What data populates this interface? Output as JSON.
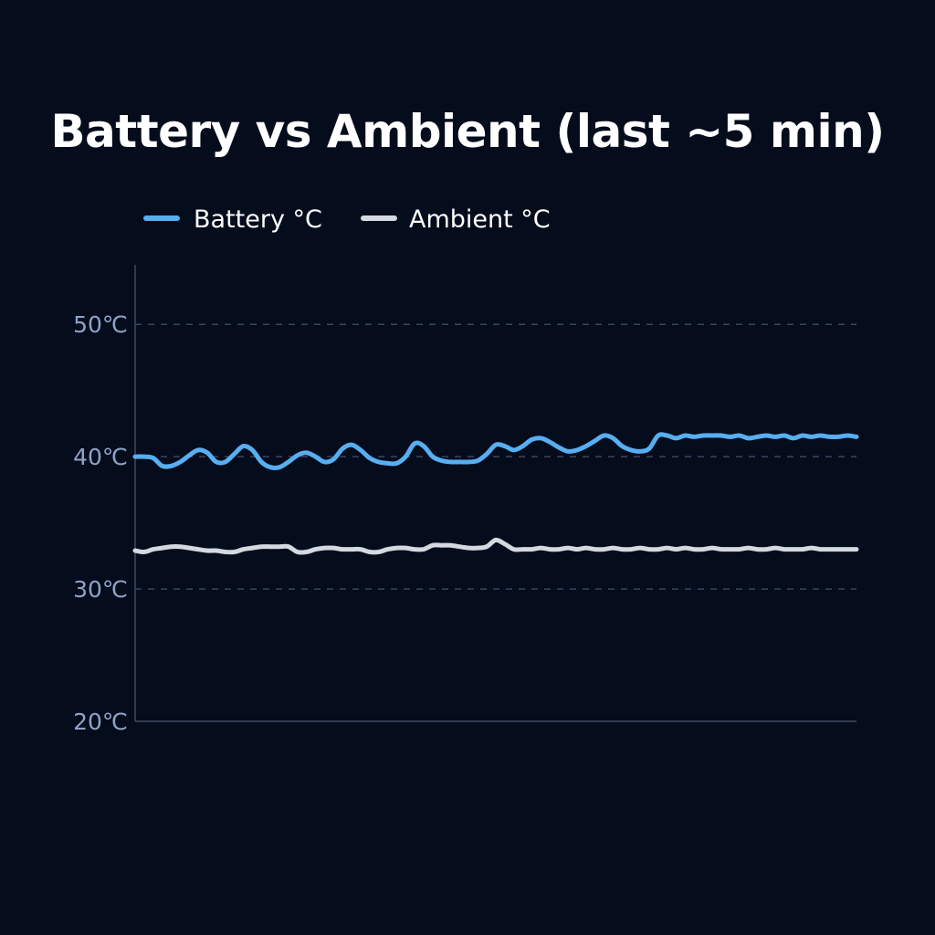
{
  "chart_data": {
    "type": "line",
    "title": "Battery vs Ambient (last ~5 min)",
    "xlabel": "",
    "ylabel": "",
    "ylim": [
      20,
      54.5
    ],
    "y_ticks": [
      {
        "value": 20,
        "label": "20℃"
      },
      {
        "value": 30,
        "label": "30℃"
      },
      {
        "value": 40,
        "label": "40℃"
      },
      {
        "value": 50,
        "label": "50℃"
      }
    ],
    "grid": true,
    "legend_position": "top-left",
    "x": [
      0,
      1,
      2,
      3,
      4,
      5,
      6,
      7,
      8,
      9,
      10,
      11,
      12,
      13,
      14,
      15,
      16,
      17,
      18,
      19,
      20,
      21,
      22,
      23,
      24,
      25,
      26,
      27,
      28,
      29,
      30,
      31,
      32,
      33,
      34,
      35,
      36,
      37,
      38,
      39,
      40,
      41,
      42,
      43,
      44,
      45,
      46,
      47,
      48,
      49,
      50,
      51,
      52,
      53,
      54,
      55,
      56,
      57,
      58,
      59,
      60,
      61,
      62,
      63,
      64,
      65,
      66,
      67,
      68,
      69,
      70,
      71,
      72,
      73,
      74,
      75,
      76,
      77,
      78,
      79,
      80
    ],
    "series": [
      {
        "name": "Battery °C",
        "color": "#57aef0",
        "values": [
          40.0,
          40.0,
          39.9,
          39.3,
          39.3,
          39.6,
          40.1,
          40.5,
          40.3,
          39.6,
          39.6,
          40.2,
          40.8,
          40.5,
          39.6,
          39.2,
          39.2,
          39.6,
          40.1,
          40.3,
          40.0,
          39.6,
          39.8,
          40.6,
          40.9,
          40.5,
          39.9,
          39.6,
          39.5,
          39.5,
          40.0,
          41.0,
          40.8,
          40.0,
          39.7,
          39.6,
          39.6,
          39.6,
          39.7,
          40.2,
          40.9,
          40.8,
          40.5,
          40.8,
          41.3,
          41.4,
          41.1,
          40.7,
          40.4,
          40.5,
          40.8,
          41.2,
          41.6,
          41.4,
          40.8,
          40.5,
          40.4,
          40.6,
          41.6,
          41.6,
          41.4,
          41.6,
          41.5,
          41.6,
          41.6,
          41.6,
          41.5,
          41.6,
          41.4,
          41.5,
          41.6,
          41.5,
          41.6,
          41.4,
          41.6,
          41.5,
          41.6,
          41.5,
          41.5,
          41.6,
          41.5
        ]
      },
      {
        "name": "Ambient °C",
        "color": "#d4d8df",
        "values": [
          32.9,
          32.8,
          33.0,
          33.1,
          33.2,
          33.2,
          33.1,
          33.0,
          32.9,
          32.9,
          32.8,
          32.8,
          33.0,
          33.1,
          33.2,
          33.2,
          33.2,
          33.2,
          32.8,
          32.8,
          33.0,
          33.1,
          33.1,
          33.0,
          33.0,
          33.0,
          32.8,
          32.8,
          33.0,
          33.1,
          33.1,
          33.0,
          33.0,
          33.3,
          33.3,
          33.3,
          33.2,
          33.1,
          33.1,
          33.2,
          33.7,
          33.4,
          33.0,
          33.0,
          33.0,
          33.1,
          33.0,
          33.0,
          33.1,
          33.0,
          33.1,
          33.0,
          33.0,
          33.1,
          33.0,
          33.0,
          33.1,
          33.0,
          33.0,
          33.1,
          33.0,
          33.1,
          33.0,
          33.0,
          33.1,
          33.0,
          33.0,
          33.0,
          33.1,
          33.0,
          33.0,
          33.1,
          33.0,
          33.0,
          33.0,
          33.1,
          33.0,
          33.0,
          33.0,
          33.0,
          33.0
        ]
      }
    ]
  }
}
